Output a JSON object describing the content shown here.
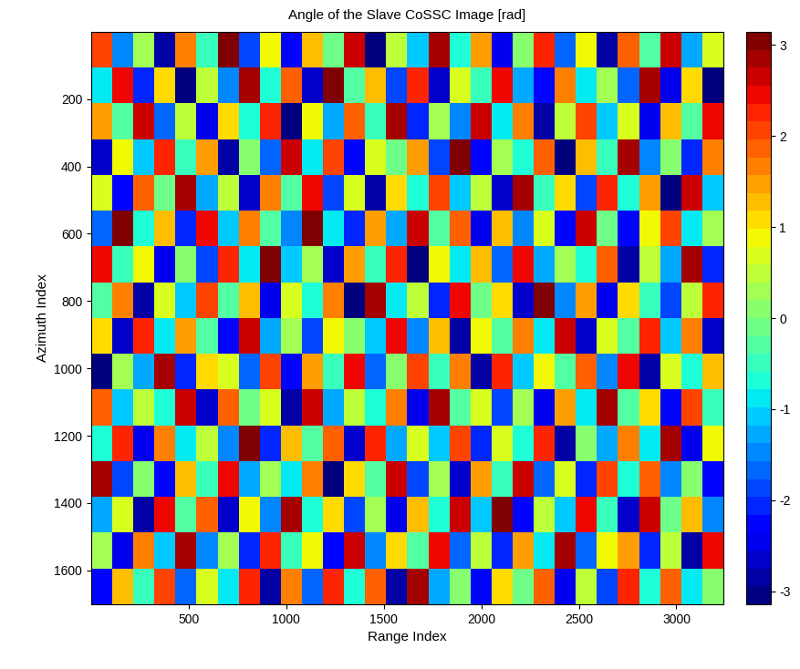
{
  "chart_data": {
    "type": "heatmap",
    "title": "Angle of the Slave CoSSC Image [rad]",
    "x_label": "Range Index",
    "y_label": "Azimuth Index",
    "xlim": [
      1,
      3240
    ],
    "ylim": [
      1700,
      1
    ],
    "xticks": [
      500,
      1000,
      1500,
      2000,
      2500,
      3000
    ],
    "yticks": [
      200,
      400,
      600,
      800,
      1000,
      1200,
      1400,
      1600
    ],
    "cells": [
      [
        2.1,
        -1.4,
        0.3,
        -2.8,
        1.7,
        -0.5,
        3.0,
        -1.9,
        0.8,
        -2.3,
        1.2,
        -0.1,
        2.6,
        -3.1,
        0.5,
        -1.1,
        2.9,
        -0.7,
        1.5,
        -2.5,
        0.1,
        2.3,
        -1.6,
        0.9,
        -2.9,
        1.8,
        -0.3,
        2.7,
        -1.2,
        0.6
      ],
      [
        -0.9,
        2.4,
        -2.1,
        1.0,
        -3.0,
        0.4,
        -1.5,
        2.8,
        -0.6,
        1.9,
        -2.6,
        3.1,
        -0.2,
        1.3,
        -1.8,
        2.2,
        -2.7,
        0.7,
        -0.4,
        2.5,
        -1.3,
        -2.2,
        1.6,
        -0.8,
        0.2,
        -1.7,
        2.9,
        -2.4,
        1.1,
        -3.0
      ],
      [
        1.4,
        -0.3,
        2.7,
        -1.6,
        0.5,
        -2.4,
        1.1,
        -0.7,
        2.3,
        -3.0,
        0.9,
        -1.2,
        1.8,
        -0.5,
        2.9,
        -2.0,
        0.3,
        -1.4,
        2.6,
        -0.9,
        1.6,
        -2.8,
        0.4,
        2.0,
        -1.1,
        0.7,
        -2.5,
        1.3,
        -0.2,
        2.4
      ],
      [
        -2.6,
        0.8,
        -1.0,
        2.2,
        -0.4,
        1.5,
        -2.9,
        0.1,
        -1.7,
        2.6,
        -0.8,
        2.0,
        -2.3,
        0.6,
        -0.1,
        1.4,
        -1.9,
        3.0,
        -2.2,
        0.2,
        -0.6,
        1.9,
        -3.1,
        1.2,
        -0.5,
        2.8,
        -1.4,
        0.0,
        -2.0,
        1.7
      ],
      [
        0.6,
        -2.2,
        1.9,
        -0.1,
        2.8,
        -1.3,
        0.4,
        -2.6,
        1.6,
        -0.3,
        2.4,
        -1.8,
        0.7,
        -2.9,
        1.1,
        -0.6,
        2.1,
        -1.0,
        0.5,
        -2.7,
        2.9,
        -0.4,
        1.0,
        -1.9,
        2.3,
        -0.7,
        1.5,
        -3.0,
        2.6,
        -1.1
      ],
      [
        -1.7,
        3.0,
        -0.6,
        1.3,
        -2.1,
        2.5,
        -1.0,
        1.7,
        -0.2,
        -1.4,
        3.1,
        -0.9,
        -2.0,
        1.5,
        -1.2,
        2.7,
        -0.3,
        1.8,
        -2.4,
        1.2,
        -1.5,
        0.6,
        -2.3,
        2.7,
        -0.1,
        -2.2,
        0.9,
        2.1,
        -0.8,
        0.3
      ],
      [
        2.5,
        -0.5,
        0.9,
        -2.4,
        0.0,
        -1.8,
        2.3,
        -0.8,
        3.0,
        -1.1,
        0.2,
        -2.7,
        1.4,
        -0.4,
        2.2,
        -3.0,
        0.8,
        -0.9,
        1.3,
        -1.6,
        2.4,
        -1.2,
        0.3,
        -0.6,
        1.9,
        -2.8,
        0.5,
        -1.3,
        2.9,
        -2.1
      ],
      [
        -0.2,
        1.6,
        -2.9,
        0.7,
        -1.1,
        2.0,
        -0.3,
        1.2,
        -2.5,
        0.6,
        -0.7,
        1.7,
        -3.1,
        2.8,
        -0.9,
        0.4,
        -2.1,
        2.5,
        -0.1,
        1.0,
        -2.6,
        3.0,
        -1.4,
        1.4,
        -2.4,
        1.1,
        -0.4,
        -1.8,
        0.4,
        2.2
      ],
      [
        1.0,
        -2.7,
        2.2,
        -0.9,
        1.4,
        -0.2,
        -2.3,
        2.6,
        -1.3,
        0.3,
        -1.9,
        0.9,
        0.1,
        -1.0,
        2.5,
        -1.5,
        1.2,
        -2.8,
        0.9,
        -0.3,
        1.7,
        -0.8,
        2.6,
        -2.6,
        0.6,
        -0.2,
        2.3,
        -1.0,
        1.6,
        -2.7
      ],
      [
        -3.0,
        0.2,
        -1.3,
        2.9,
        -2.0,
        1.1,
        0.6,
        -1.6,
        2.0,
        -2.2,
        1.5,
        -0.4,
        2.4,
        -1.7,
        0.0,
        2.1,
        -0.5,
        1.6,
        -2.9,
        2.3,
        -1.1,
        0.8,
        -0.2,
        1.8,
        -1.5,
        2.5,
        -2.9,
        0.7,
        -0.6,
        1.3
      ],
      [
        1.9,
        -1.1,
        0.4,
        -0.7,
        2.6,
        -2.6,
        1.8,
        -0.1,
        0.7,
        -2.8,
        2.7,
        -1.3,
        0.5,
        -0.6,
        1.7,
        -2.4,
        2.8,
        -0.2,
        0.6,
        -1.8,
        0.3,
        -2.5,
        1.5,
        -0.9,
        2.9,
        -0.3,
        1.0,
        -2.2,
        2.1,
        -0.5
      ],
      [
        -0.6,
        2.3,
        -2.5,
        1.6,
        -0.8,
        0.5,
        -1.4,
        3.1,
        -2.1,
        1.3,
        -0.2,
        1.9,
        -2.6,
        2.2,
        -1.3,
        0.6,
        -1.1,
        2.0,
        -2.0,
        0.7,
        -0.7,
        2.2,
        -2.9,
        0.1,
        -1.2,
        1.6,
        -0.8,
        2.8,
        -2.4,
        0.9
      ],
      [
        2.8,
        -1.9,
        0.0,
        -2.2,
        1.2,
        -0.4,
        2.5,
        -1.2,
        0.2,
        -0.9,
        1.6,
        -3.0,
        1.0,
        -0.3,
        2.6,
        -1.8,
        0.2,
        -2.6,
        1.4,
        -0.5,
        2.7,
        -1.6,
        0.6,
        -2.1,
        2.0,
        -0.6,
        1.8,
        -1.5,
        0.0,
        -2.3
      ],
      [
        -1.3,
        0.7,
        -2.8,
        2.4,
        -0.3,
        1.9,
        -2.7,
        0.9,
        -1.5,
        2.9,
        -0.6,
        1.1,
        -1.9,
        0.3,
        -2.5,
        1.3,
        -0.7,
        2.6,
        -1.0,
        3.0,
        -2.3,
        0.4,
        -1.0,
        2.4,
        -0.4,
        -2.7,
        2.6,
        -0.1,
        1.2,
        -1.4
      ],
      [
        0.2,
        -2.4,
        1.6,
        -1.0,
        2.9,
        -1.5,
        0.3,
        -2.0,
        2.3,
        -0.5,
        0.8,
        -2.2,
        2.7,
        -1.4,
        1.0,
        -0.2,
        2.4,
        -1.7,
        0.4,
        -2.1,
        1.5,
        -0.9,
        2.9,
        -1.7,
        0.8,
        1.4,
        -2.0,
        0.5,
        -2.8,
        2.5
      ],
      [
        -2.2,
        1.3,
        -0.4,
        2.0,
        -1.7,
        0.6,
        -0.9,
        2.2,
        -2.9,
        1.7,
        -1.6,
        2.3,
        -0.7,
        1.9,
        -2.8,
        2.9,
        -1.2,
        0.1,
        -2.3,
        1.1,
        -0.1,
        1.8,
        -2.4,
        0.5,
        -1.9,
        2.2,
        -0.7,
        1.9,
        -0.9,
        0.1
      ]
    ],
    "colorbar": {
      "range": [
        -3.1416,
        3.1416
      ],
      "ticks": [
        -3,
        -2,
        -1,
        0,
        1,
        2,
        3
      ]
    }
  }
}
